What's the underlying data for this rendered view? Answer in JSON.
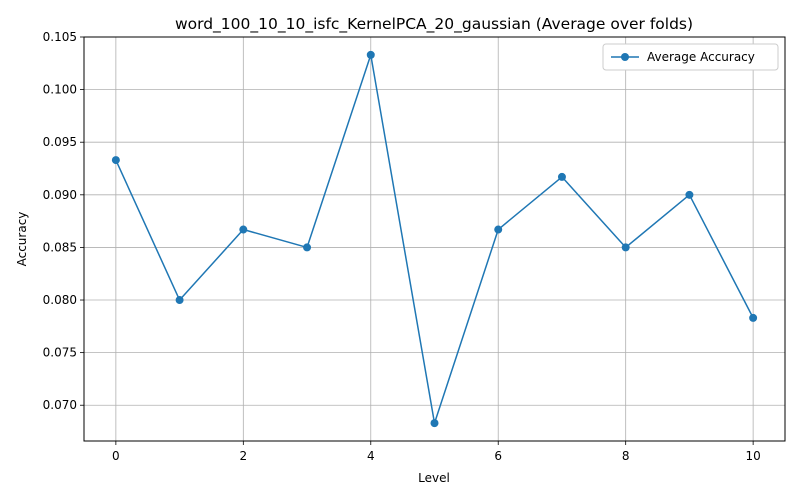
{
  "chart_data": {
    "type": "line",
    "title": "word_100_10_10_isfc_KernelPCA_20_gaussian (Average over folds)",
    "xlabel": "Level",
    "ylabel": "Accuracy",
    "xlim": [
      -0.5,
      10.5
    ],
    "ylim": [
      0.0666,
      0.105
    ],
    "x_ticks": [
      0,
      2,
      4,
      6,
      8,
      10
    ],
    "y_ticks": [
      0.07,
      0.075,
      0.08,
      0.085,
      0.09,
      0.095,
      0.1,
      0.105
    ],
    "y_tick_labels": [
      "0.070",
      "0.075",
      "0.080",
      "0.085",
      "0.090",
      "0.095",
      "0.100",
      "0.105"
    ],
    "grid": true,
    "legend_position": "top-right",
    "series": [
      {
        "name": "Average Accuracy",
        "color": "#1f77b4",
        "marker": "circle",
        "x": [
          0,
          1,
          2,
          3,
          4,
          5,
          6,
          7,
          8,
          9,
          10
        ],
        "y": [
          0.0933,
          0.08,
          0.0867,
          0.085,
          0.1033,
          0.0683,
          0.0867,
          0.0917,
          0.085,
          0.09,
          0.0783
        ]
      }
    ]
  }
}
